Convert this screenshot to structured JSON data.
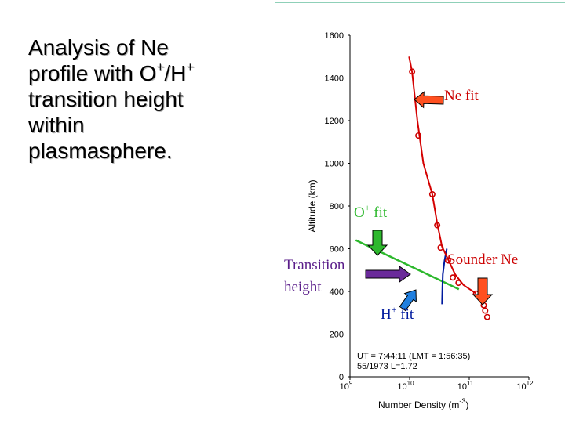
{
  "slide": {
    "title_lines": [
      "Analysis of Ne",
      "profile with O",
      "+",
      "/H",
      "+",
      "transition height",
      "within",
      "plasmasphere."
    ]
  },
  "chart_data": {
    "type": "scatter",
    "xlabel": "Number Density (m",
    "xlabel_exp": "-3",
    "xlabel_close": ")",
    "ylabel": "Altitude (km)",
    "x_scale": "log",
    "xlim": [
      1000000000.0,
      1000000000000.0
    ],
    "ylim": [
      0,
      1600
    ],
    "x_ticks": [
      {
        "value": 1000000000.0,
        "base": "10",
        "exp": "9"
      },
      {
        "value": 10000000000.0,
        "base": "10",
        "exp": "10"
      },
      {
        "value": 100000000000.0,
        "base": "10",
        "exp": "11"
      },
      {
        "value": 1000000000000.0,
        "base": "10",
        "exp": "12"
      }
    ],
    "y_ticks": [
      0,
      200,
      400,
      600,
      800,
      1000,
      1200,
      1400,
      1600
    ],
    "y_tick_labels": [
      "0",
      "200",
      "400",
      "600",
      "800",
      "1000",
      "1200",
      "1400",
      "1600"
    ],
    "series": [
      {
        "name": "Sounder Ne",
        "color": "#cc0000",
        "points": [
          {
            "x": 11000000000.0,
            "y": 1430
          },
          {
            "x": 14000000000.0,
            "y": 1130
          },
          {
            "x": 24000000000.0,
            "y": 855
          },
          {
            "x": 29000000000.0,
            "y": 710
          },
          {
            "x": 33000000000.0,
            "y": 605
          },
          {
            "x": 44000000000.0,
            "y": 545
          },
          {
            "x": 53000000000.0,
            "y": 465
          },
          {
            "x": 66000000000.0,
            "y": 440
          },
          {
            "x": 130000000000.0,
            "y": 390
          },
          {
            "x": 175000000000.0,
            "y": 335
          },
          {
            "x": 185000000000.0,
            "y": 310
          },
          {
            "x": 200000000000.0,
            "y": 280
          }
        ]
      },
      {
        "name": "Ne fit",
        "color": "#d40000",
        "points": [
          {
            "x": 9800000000.0,
            "y": 1500
          },
          {
            "x": 11000000000.0,
            "y": 1430
          },
          {
            "x": 13500000000.0,
            "y": 1200
          },
          {
            "x": 17000000000.0,
            "y": 1000
          },
          {
            "x": 24000000000.0,
            "y": 855
          },
          {
            "x": 29000000000.0,
            "y": 720
          },
          {
            "x": 35000000000.0,
            "y": 610
          },
          {
            "x": 46000000000.0,
            "y": 540
          },
          {
            "x": 58000000000.0,
            "y": 480
          },
          {
            "x": 80000000000.0,
            "y": 430
          },
          {
            "x": 130000000000.0,
            "y": 390
          }
        ]
      },
      {
        "name": "O+ fit",
        "color": "#2db82d",
        "points": [
          {
            "x": 1250000000.0,
            "y": 640
          },
          {
            "x": 67000000000.0,
            "y": 410
          }
        ]
      },
      {
        "name": "H+ fit",
        "color": "#001a9e",
        "points": [
          {
            "x": 42000000000.0,
            "y": 600
          },
          {
            "x": 38500000000.0,
            "y": 545
          },
          {
            "x": 36000000000.0,
            "y": 480
          },
          {
            "x": 35500000000.0,
            "y": 420
          },
          {
            "x": 35000000000.0,
            "y": 340
          }
        ]
      }
    ],
    "annotations": [
      {
        "label": "Ne fit",
        "color": "#cc0000"
      },
      {
        "label": "O",
        "sup": "+",
        "rest": " fit",
        "color": "#2db82d"
      },
      {
        "label": "Transition",
        "color": "#5a1d8a"
      },
      {
        "label": "height",
        "color": "#5a1d8a"
      },
      {
        "label": "H",
        "sup": "+",
        "rest": " fit",
        "color": "#001a9e"
      },
      {
        "label": "Sounder Ne",
        "color": "#cc0000"
      }
    ],
    "info_lines": [
      "UT = 7:44:11 (LMT = 1:56:35)",
      "55/1973   L=1.72"
    ],
    "arrow_color": "#ff5020"
  }
}
